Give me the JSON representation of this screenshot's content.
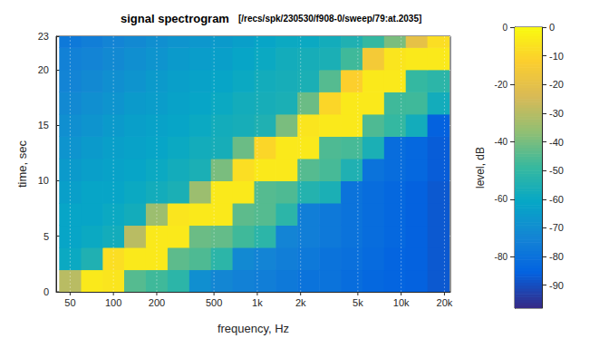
{
  "chart_data": {
    "type": "heatmap",
    "title": "signal spectrogram",
    "subtitle": "[/recs/spk/230530/f908-0/sweep/79:at.2035]",
    "x_label": "frequency, Hz",
    "y_label": "time, sec",
    "z_label": "level, dB",
    "log": "x",
    "grid": true,
    "x": [
      50,
      71,
      100,
      141,
      200,
      283,
      400,
      566,
      800,
      1131,
      1600,
      2263,
      3200,
      4525,
      6400,
      9051,
      12800,
      18102
    ],
    "y": [
      0,
      2,
      4,
      6,
      8,
      10,
      12,
      14,
      16,
      18,
      20,
      22
    ],
    "values": [
      [
        -30,
        -5,
        -6,
        -45,
        -48,
        -52,
        -70,
        -73,
        -75,
        -76,
        -78,
        -80,
        -80,
        -82,
        -84,
        -85,
        -86,
        -88
      ],
      [
        -60,
        -55,
        -8,
        -5,
        -5,
        -44,
        -46,
        -52,
        -72,
        -74,
        -76,
        -78,
        -80,
        -81,
        -83,
        -85,
        -86,
        -88
      ],
      [
        -62,
        -60,
        -58,
        -30,
        -5,
        -5,
        -42,
        -43,
        -48,
        -52,
        -74,
        -76,
        -78,
        -80,
        -82,
        -84,
        -86,
        -88
      ],
      [
        -62,
        -62,
        -60,
        -58,
        -35,
        -6,
        -5,
        -5,
        -44,
        -45,
        -52,
        -76,
        -78,
        -80,
        -82,
        -84,
        -86,
        -88
      ],
      [
        -64,
        -62,
        -62,
        -60,
        -58,
        -56,
        -35,
        -5,
        -5,
        -45,
        -46,
        -54,
        -56,
        -80,
        -82,
        -84,
        -86,
        -88
      ],
      [
        -66,
        -64,
        -63,
        -62,
        -60,
        -58,
        -56,
        -40,
        -8,
        -5,
        -5,
        -45,
        -47,
        -55,
        -80,
        -82,
        -84,
        -87
      ],
      [
        -68,
        -66,
        -64,
        -63,
        -62,
        -60,
        -58,
        -57,
        -42,
        -10,
        -5,
        -5,
        -46,
        -47,
        -56,
        -82,
        -84,
        -87
      ],
      [
        -70,
        -68,
        -66,
        -64,
        -63,
        -62,
        -60,
        -58,
        -57,
        -55,
        -40,
        -6,
        -5,
        -5,
        -46,
        -50,
        -58,
        -86
      ],
      [
        -72,
        -70,
        -68,
        -66,
        -65,
        -63,
        -62,
        -60,
        -58,
        -57,
        -56,
        -42,
        -10,
        -5,
        -5,
        -48,
        -48,
        -58
      ],
      [
        -74,
        -72,
        -70,
        -68,
        -66,
        -64,
        -63,
        -62,
        -60,
        -58,
        -57,
        -56,
        -45,
        -12,
        -5,
        -5,
        -50,
        -52
      ],
      [
        -75,
        -74,
        -72,
        -70,
        -68,
        -66,
        -65,
        -64,
        -62,
        -60,
        -58,
        -57,
        -56,
        -48,
        -15,
        -6,
        -5,
        -5
      ],
      [
        -78,
        -76,
        -74,
        -72,
        -70,
        -68,
        -67,
        -66,
        -64,
        -62,
        -60,
        -60,
        -58,
        -55,
        -50,
        -40,
        -20,
        -8
      ]
    ],
    "xlim": [
      40,
      22000
    ],
    "xticks": [
      50,
      100,
      200,
      500,
      {
        "value": 1000,
        "label": "1k"
      },
      {
        "value": 2000,
        "label": "2k"
      },
      {
        "value": 5000,
        "label": "5k"
      },
      {
        "value": 10000,
        "label": "10k"
      },
      {
        "value": 20000,
        "label": "20k"
      }
    ],
    "ylim": [
      0,
      23
    ],
    "yticks": [
      0,
      5,
      10,
      15,
      20
    ],
    "zlim": [
      -98,
      0
    ],
    "zticks": [
      0,
      -20,
      -40,
      -60,
      -80
    ],
    "colorbar": {
      "range": [
        -98,
        0
      ],
      "ticks": [
        0,
        -10,
        -20,
        -30,
        -40,
        -50,
        -60,
        -70,
        -80,
        -90
      ]
    }
  }
}
